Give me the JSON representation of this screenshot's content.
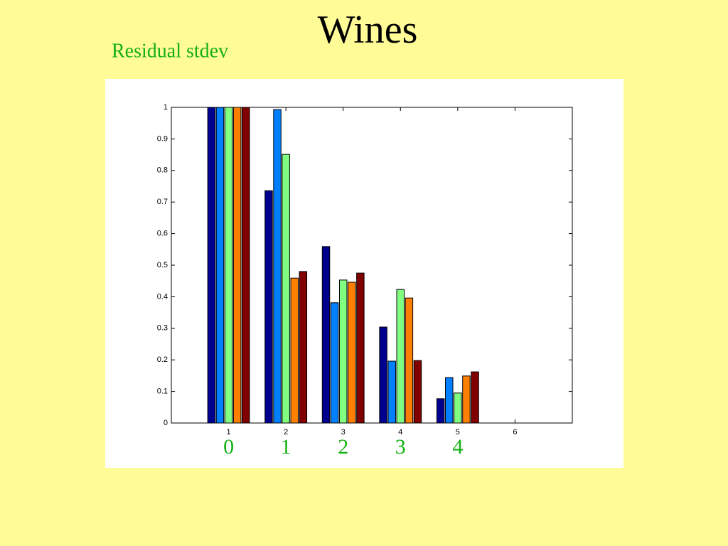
{
  "chart_data": {
    "type": "bar",
    "title": "Wines",
    "subtitle": "Residual stdev",
    "x": [
      1,
      2,
      3,
      4,
      5
    ],
    "series": [
      {
        "color": "#00008f",
        "values": [
          1,
          0.736,
          0.559,
          0.304,
          0.077
        ]
      },
      {
        "color": "#0080ff",
        "values": [
          1,
          0.993,
          0.381,
          0.196,
          0.144
        ]
      },
      {
        "color": "#80ff80",
        "values": [
          1,
          0.851,
          0.453,
          0.423,
          0.095
        ]
      },
      {
        "color": "#ff8000",
        "values": [
          1,
          0.459,
          0.446,
          0.396,
          0.149
        ]
      },
      {
        "color": "#800000",
        "values": [
          1,
          0.48,
          0.475,
          0.198,
          0.162
        ]
      }
    ],
    "annotations": [
      "0",
      "1",
      "2",
      "3",
      "4"
    ],
    "xlim": [
      0,
      7
    ],
    "xticks": [
      1,
      2,
      3,
      4,
      5,
      6
    ],
    "ylim": [
      0,
      1
    ],
    "yticks": [
      0,
      0.1,
      0.2,
      0.3,
      0.4,
      0.5,
      0.6,
      0.7,
      0.8,
      0.9,
      1
    ],
    "grid": false
  }
}
